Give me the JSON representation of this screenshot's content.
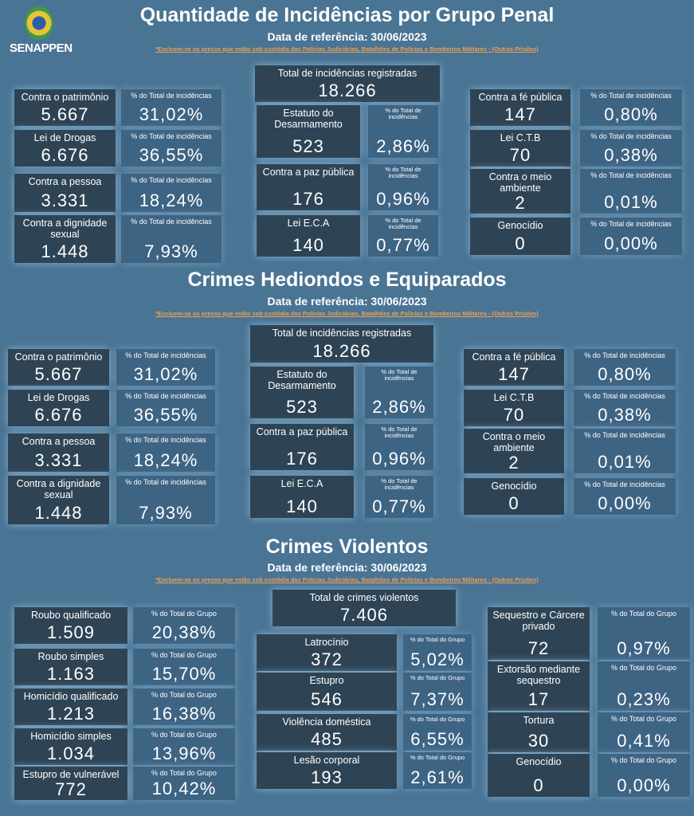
{
  "logo": {
    "text": "SENAPPEN"
  },
  "colors": {
    "background": "#4a7494",
    "card": "#2e4455",
    "pct_card": "#3e6484",
    "note": "#f0a050"
  },
  "sections": [
    {
      "title": "Quantidade de Incidências por Grupo Penal",
      "date": "Data de referência: 30/06/2023",
      "note": "*Excluem-se os presos que estão sob custódia das Polícias Judiciárias, Batalhões de Polícias e Bombeiros Militares - (Outras Prisões)",
      "pct_label": "% do Total de incidências",
      "total": {
        "label": "Total de incidências registradas",
        "value": "18.266"
      },
      "left": [
        {
          "label": "Contra o patrimônio",
          "value": "5.667",
          "pct": "31,02%"
        },
        {
          "label": "Lei de Drogas",
          "value": "6.676",
          "pct": "36,55%"
        },
        {
          "label": "Contra a pessoa",
          "value": "3.331",
          "pct": "18,24%"
        },
        {
          "label": "Contra a dignidade sexual",
          "value": "1.448",
          "pct": "7,93%"
        }
      ],
      "center": [
        {
          "label": "Estatuto do Desarmamento",
          "value": "523",
          "pct": "2,86%"
        },
        {
          "label": "Contra a paz pública",
          "value": "176",
          "pct": "0,96%"
        },
        {
          "label": "Lei E.C.A",
          "value": "140",
          "pct": "0,77%"
        }
      ],
      "right": [
        {
          "label": "Contra a fé pública",
          "value": "147",
          "pct": "0,80%"
        },
        {
          "label": "Lei C.T.B",
          "value": "70",
          "pct": "0,38%"
        },
        {
          "label": "Contra o meio ambiente",
          "value": "2",
          "pct": "0,01%"
        },
        {
          "label": "Genocídio",
          "value": "0",
          "pct": "0,00%"
        }
      ]
    },
    {
      "title": "Crimes Hediondos e Equiparados",
      "date": "Data de referência: 30/06/2023",
      "note": "*Excluem-se os presos que estão sob custódia das Polícias Judiciárias, Batalhões de Polícias e Bombeiros Militares - (Outras Prisões)",
      "pct_label": "% do Total de incidências",
      "total": {
        "label": "Total de incidências registradas",
        "value": "18.266"
      },
      "left": [
        {
          "label": "Contra o patrimônio",
          "value": "5.667",
          "pct": "31,02%"
        },
        {
          "label": "Lei de Drogas",
          "value": "6.676",
          "pct": "36,55%"
        },
        {
          "label": "Contra a pessoa",
          "value": "3.331",
          "pct": "18,24%"
        },
        {
          "label": "Contra a dignidade sexual",
          "value": "1.448",
          "pct": "7,93%"
        }
      ],
      "center": [
        {
          "label": "Estatuto do Desarmamento",
          "value": "523",
          "pct": "2,86%"
        },
        {
          "label": "Contra a paz pública",
          "value": "176",
          "pct": "0,96%"
        },
        {
          "label": "Lei E.C.A",
          "value": "140",
          "pct": "0,77%"
        }
      ],
      "right": [
        {
          "label": "Contra a fé pública",
          "value": "147",
          "pct": "0,80%"
        },
        {
          "label": "Lei C.T.B",
          "value": "70",
          "pct": "0,38%"
        },
        {
          "label": "Contra o meio ambiente",
          "value": "2",
          "pct": "0,01%"
        },
        {
          "label": "Genocídio",
          "value": "0",
          "pct": "0,00%"
        }
      ]
    },
    {
      "title": "Crimes Violentos",
      "date": "Data de referência: 30/06/2023",
      "note": "*Excluem-se os presos que estão sob custódia das Polícias Judiciárias, Batalhões de Polícias e Bombeiros Militares - (Outras Prisões)",
      "pct_label": "% do Total do Grupo",
      "total": {
        "label": "Total de crimes violentos",
        "value": "7.406"
      },
      "left": [
        {
          "label": "Roubo qualificado",
          "value": "1.509",
          "pct": "20,38%"
        },
        {
          "label": "Roubo simples",
          "value": "1.163",
          "pct": "15,70%"
        },
        {
          "label": "Homicídio qualificado",
          "value": "1.213",
          "pct": "16,38%"
        },
        {
          "label": "Homicídio simples",
          "value": "1.034",
          "pct": "13,96%"
        },
        {
          "label": "Estupro de vulnerável",
          "value": "772",
          "pct": "10,42%"
        }
      ],
      "center": [
        {
          "label": "Latrocínio",
          "value": "372",
          "pct": "5,02%"
        },
        {
          "label": "Estupro",
          "value": "546",
          "pct": "7,37%"
        },
        {
          "label": "Violência doméstica",
          "value": "485",
          "pct": "6,55%"
        },
        {
          "label": "Lesão corporal",
          "value": "193",
          "pct": "2,61%"
        }
      ],
      "right": [
        {
          "label": "Sequestro e Cárcere privado",
          "value": "72",
          "pct": "0,97%"
        },
        {
          "label": "Extorsão mediante sequestro",
          "value": "17",
          "pct": "0,23%"
        },
        {
          "label": "Tortura",
          "value": "30",
          "pct": "0,41%"
        },
        {
          "label": "Genocídio",
          "value": "0",
          "pct": "0,00%"
        }
      ]
    }
  ]
}
